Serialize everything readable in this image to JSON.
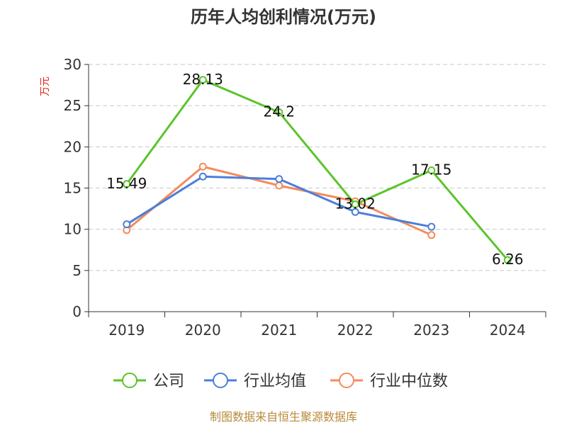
{
  "chart_data": {
    "type": "line",
    "title": "历年人均创利情况(万元)",
    "ylabel": "万元",
    "xlabel": "",
    "categories": [
      "2019",
      "2020",
      "2021",
      "2022",
      "2023",
      "2024"
    ],
    "ylim": [
      0,
      30
    ],
    "yticks": [
      0,
      5,
      10,
      15,
      20,
      25,
      30
    ],
    "grid": true,
    "legend_position": "bottom",
    "series": [
      {
        "name": "公司",
        "color": "#5bc42b",
        "values": [
          15.49,
          28.13,
          24.2,
          13.02,
          17.15,
          6.26
        ],
        "labels": [
          "15.49",
          "28.13",
          "24.2",
          "13.02",
          "17.15",
          "6.26"
        ]
      },
      {
        "name": "行业均值",
        "color": "#4a7fdc",
        "values": [
          10.6,
          16.4,
          16.1,
          12.1,
          10.3,
          null
        ]
      },
      {
        "name": "行业中位数",
        "color": "#f48b5a",
        "values": [
          9.9,
          17.6,
          15.3,
          13.4,
          9.3,
          null
        ]
      }
    ]
  },
  "source": "制图数据来自恒生聚源数据库"
}
